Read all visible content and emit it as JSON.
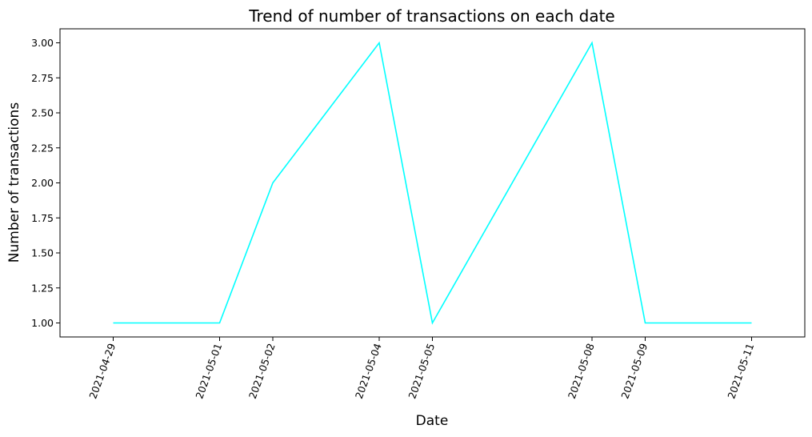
{
  "chart_data": {
    "type": "line",
    "title": "Trend of number of transactions on each date",
    "xlabel": "Date",
    "ylabel": "Number of transactions",
    "x": [
      "2021-04-29",
      "2021-05-01",
      "2021-05-02",
      "2021-05-04",
      "2021-05-05",
      "2021-05-08",
      "2021-05-09",
      "2021-05-11"
    ],
    "series": [
      {
        "values": [
          1,
          1,
          2,
          3,
          1,
          3,
          1,
          1
        ],
        "color": "#00ffff"
      }
    ],
    "xlim": [
      "2021-04-28",
      "2021-05-12"
    ],
    "ylim": [
      0.9,
      3.1
    ],
    "yticks": [
      "1.00",
      "1.25",
      "1.50",
      "1.75",
      "2.00",
      "2.25",
      "2.50",
      "2.75",
      "3.00"
    ],
    "grid": false,
    "legend": "none"
  }
}
